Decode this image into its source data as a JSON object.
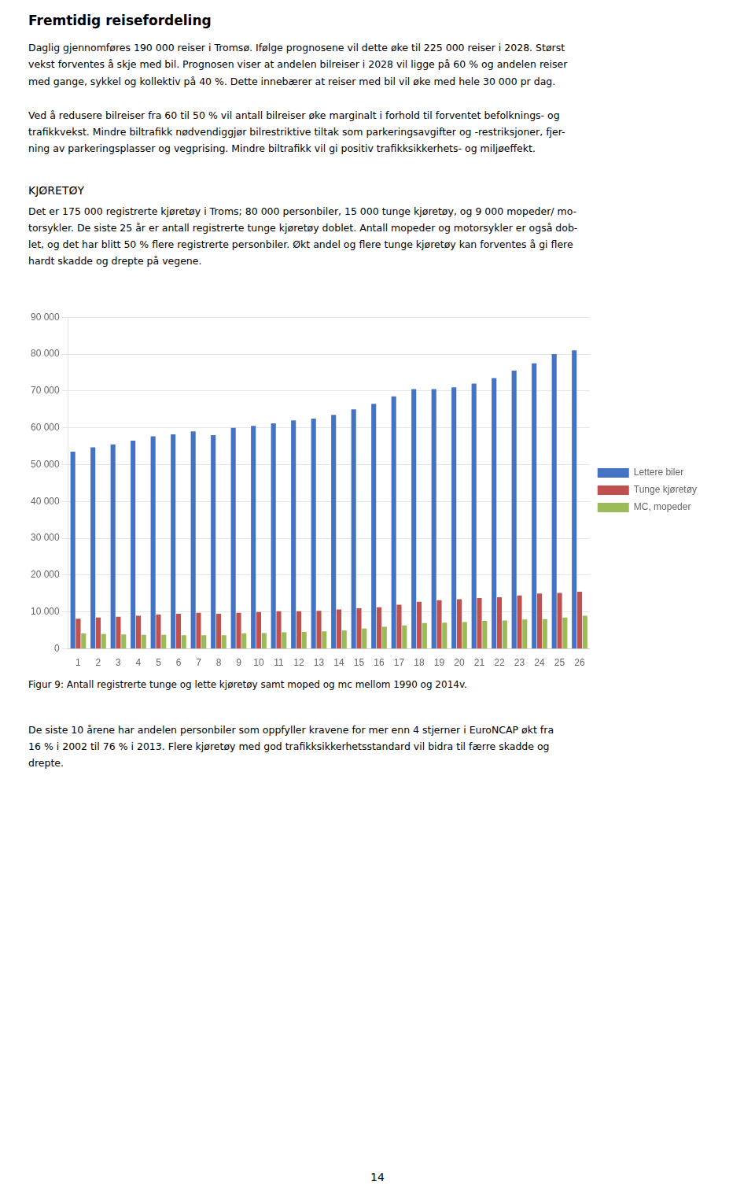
{
  "chart_data": {
    "type": "bar",
    "annotations": [
      "Fremtidig reisefordeling",
      "Daglig gjennomføres 190 000 reiser i Tromsø. Ifølge prognosene vil dette øke til 225 000 reiser i 2028. Størst\nvekst forventes å skje med bil. Prognosen viser at andelen bilreiser i 2028 vil ligge på 60 % og andelen reiser\nmed gange, sykkel og kollektiv på 40 %. Dette innebærer at reiser med bil vil øke med hele 30 000 pr dag.",
      "Ved å redusere bilreiser fra 60 til 50 % vil antall bilreiser øke marginalt i forhold til forventet befolknings- og\ntrafikkvekst. Mindre biltrafikk nødvendiggjør bilrestriktive tiltak som parkeringsavgifter og -restriksjoner, fjer-\nning av parkeringsplasser og vegprising. Mindre biltrafikk vil gi positiv trafikksikkerhets- og miljøeffekt.",
      "KJØRETØY",
      "Det er 175 000 registrerte kjøretøy i Troms; 80 000 personbiler, 15 000 tunge kjøretøy, og 9 000 mopeder/ mo-\ntorsykler. De siste 25 år er antall registrerte tunge kjøretøy doblet. Antall mopeder og motorsykler er også dob-\nlet, og det har blitt 50 % flere registrerte personbiler. Økt andel og flere tunge kjøretøy kan forventes å gi flere\nhardt skadde og drepte på vegene.",
      "Figur 9: Antall registrerte tunge og lette kjøretøy samt moped og mc mellom 1990 og 2014v.",
      "De siste 10 årene har andelen personbiler som oppfyller kravene for mer enn 4 stjerner i EuroNCAP økt fra\n16 % i 2002 til 76 % i 2013. Flere kjøretøy med god trafikksikkerhetsstandard vil bidra til færre skadde og\ndrepte.",
      "14"
    ],
    "categories": [
      "1",
      "2",
      "3",
      "4",
      "5",
      "6",
      "7",
      "8",
      "9",
      "10",
      "11",
      "12",
      "13",
      "14",
      "15",
      "16",
      "17",
      "18",
      "19",
      "20",
      "21",
      "22",
      "23",
      "24",
      "25",
      "26"
    ],
    "series": [
      {
        "name": "Lettere biler",
        "color": "#4472C4",
        "values": [
          53500,
          54700,
          55500,
          56500,
          57700,
          58200,
          59000,
          58000,
          60000,
          60500,
          61200,
          62000,
          62500,
          63500,
          65000,
          66500,
          68500,
          70500,
          70500,
          71000,
          72000,
          73500,
          75500,
          77500,
          80000,
          81000
        ]
      },
      {
        "name": "Tunge kjøretøy",
        "color": "#C0504D",
        "values": [
          8200,
          8500,
          8700,
          9000,
          9300,
          9500,
          9800,
          9500,
          9800,
          10000,
          10200,
          10200,
          10300,
          10700,
          11000,
          11300,
          12000,
          12800,
          13200,
          13500,
          13800,
          14000,
          14500,
          15000,
          15200,
          15500
        ]
      },
      {
        "name": "MC, mopeder",
        "color": "#9BBB59",
        "values": [
          4200,
          4000,
          3900,
          3800,
          3800,
          3700,
          3700,
          3700,
          4200,
          4300,
          4500,
          4600,
          4800,
          5000,
          5500,
          6000,
          6400,
          7000,
          7100,
          7300,
          7600,
          7700,
          8000,
          8100,
          8500,
          9000
        ]
      }
    ],
    "ylim": [
      0,
      90000
    ],
    "yticks": [
      0,
      {
        "value": 10000,
        "label": "10 000"
      },
      {
        "value": 20000,
        "label": "20 000"
      },
      {
        "value": 30000,
        "label": "30 000"
      },
      {
        "value": 40000,
        "label": "40 000"
      },
      {
        "value": 50000,
        "label": "50 000"
      },
      {
        "value": 60000,
        "label": "60 000"
      },
      {
        "value": 70000,
        "label": "70 000"
      },
      {
        "value": 80000,
        "label": "80 000"
      },
      {
        "value": 90000,
        "label": "90 000"
      }
    ],
    "grid": true,
    "legend": "right"
  }
}
